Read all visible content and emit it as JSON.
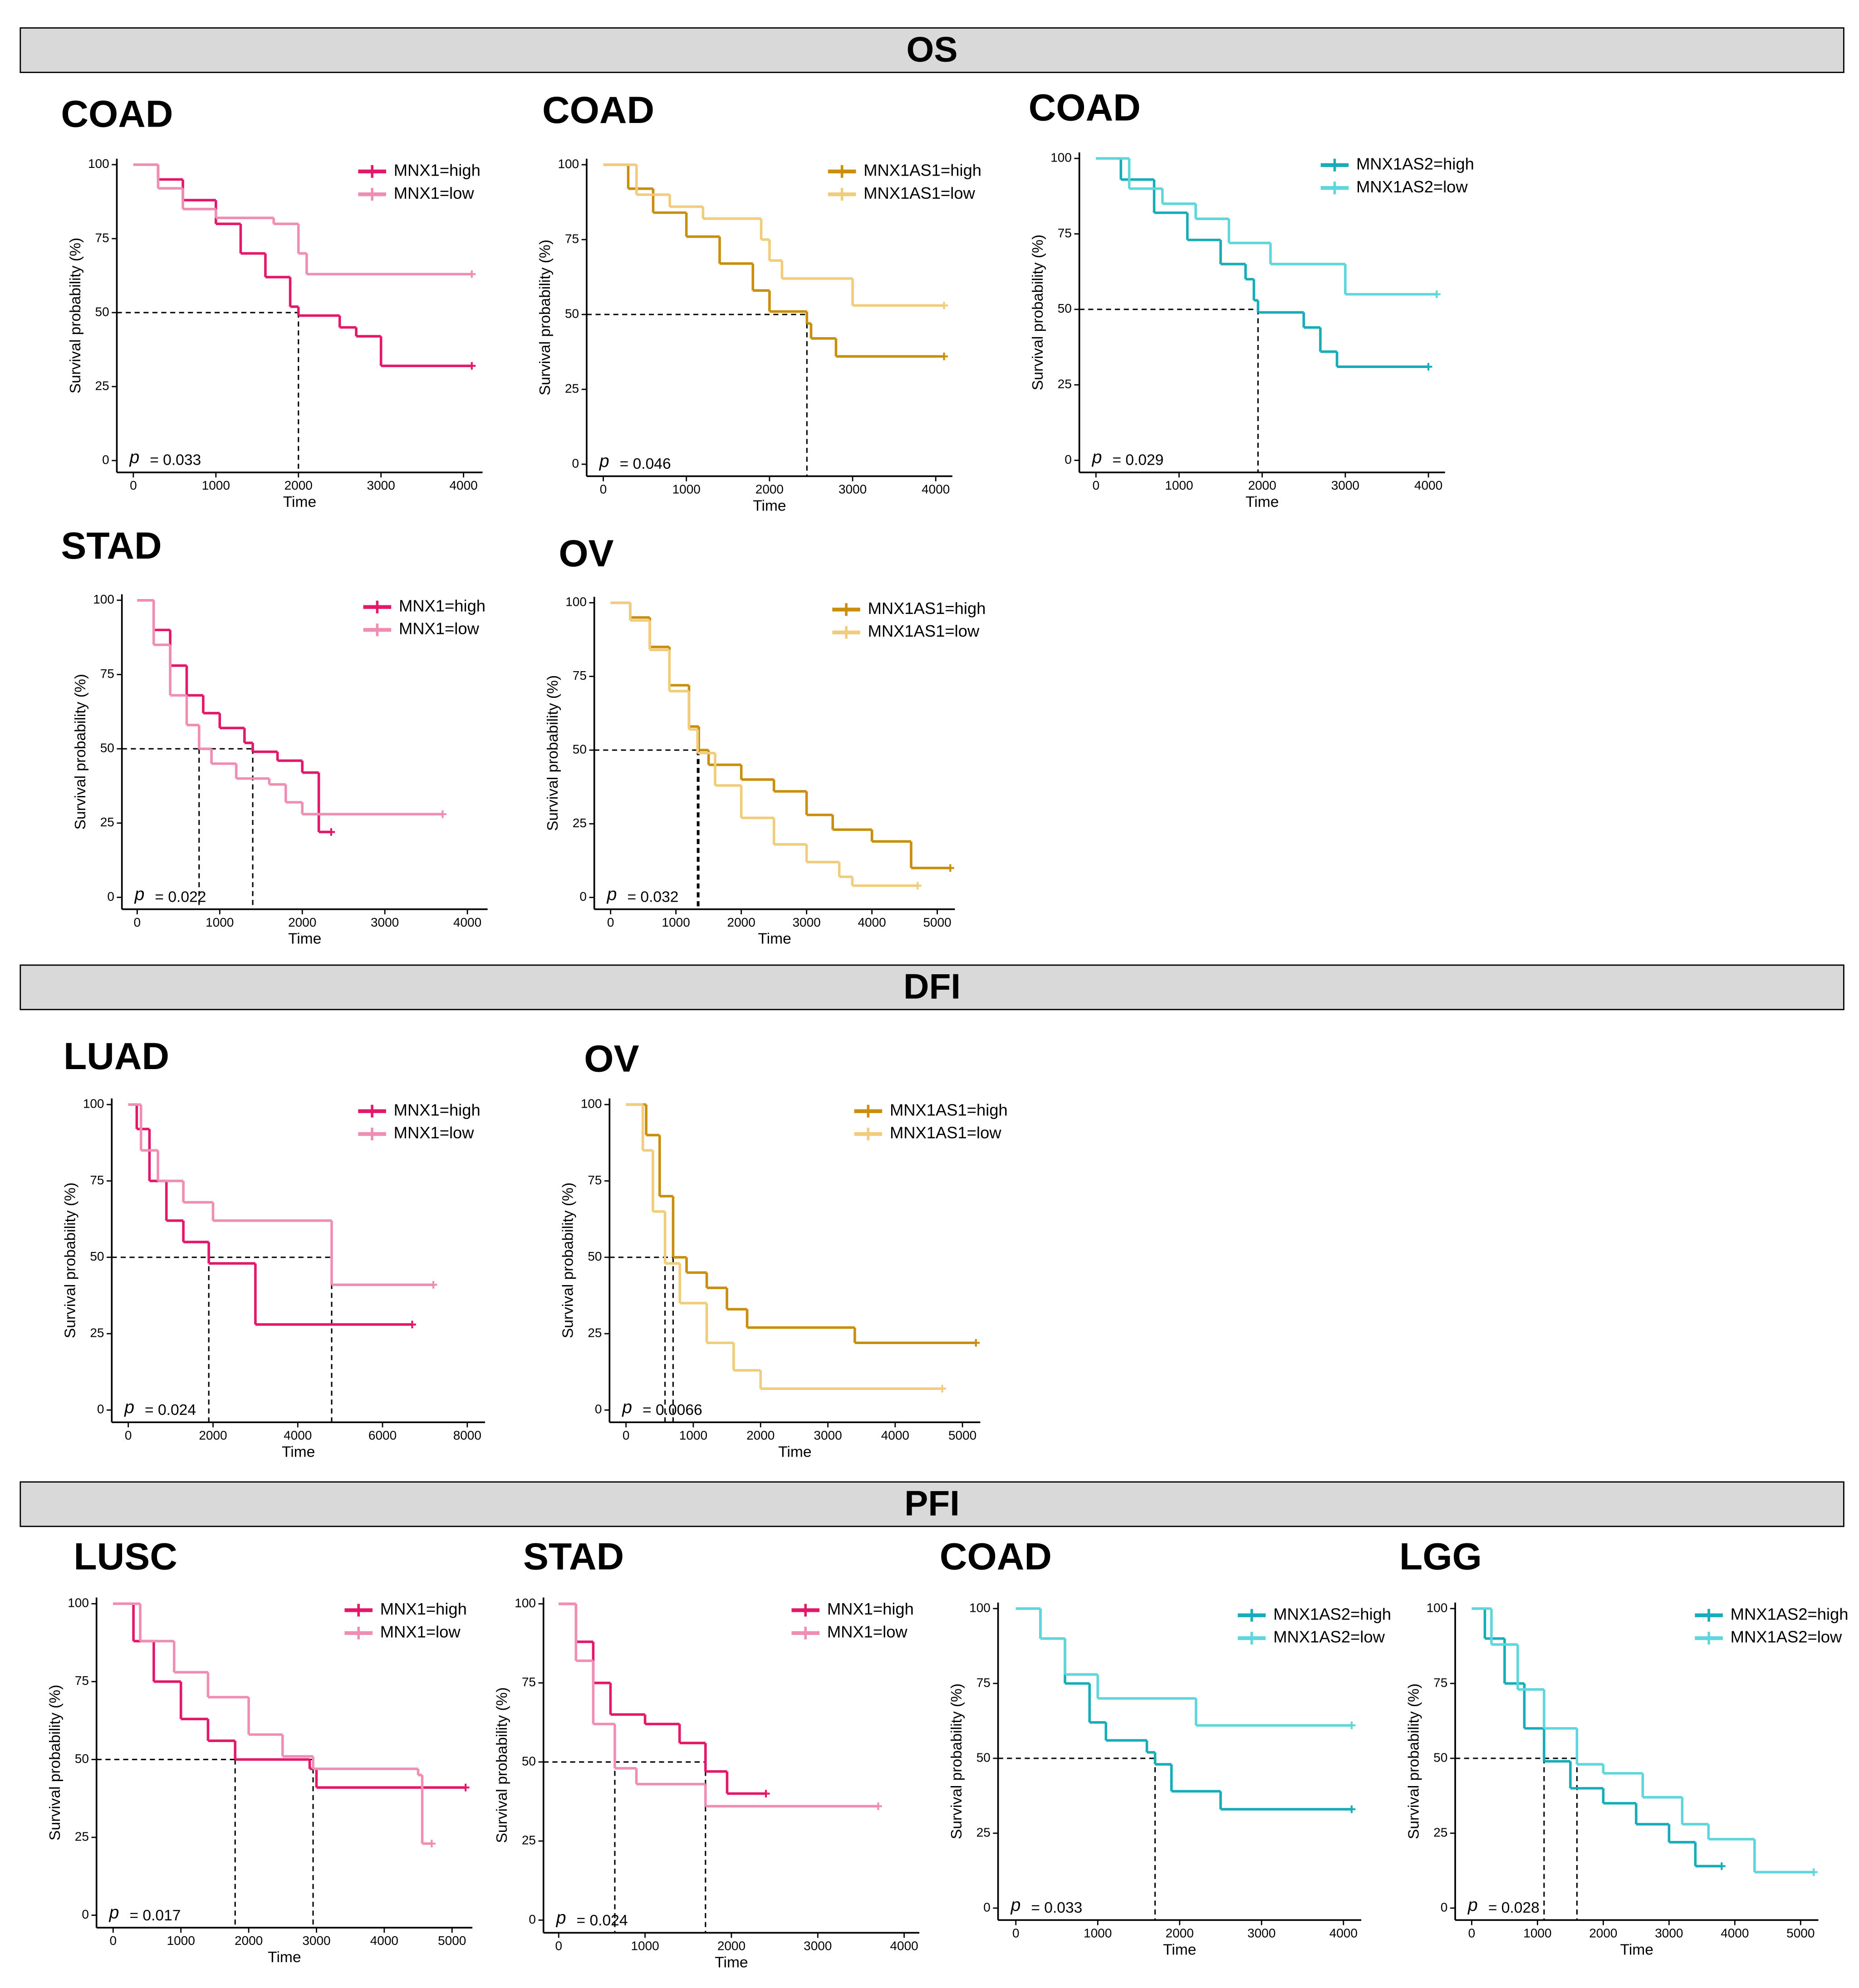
{
  "sections": [
    "OS",
    "DFI",
    "PFI"
  ],
  "chart_data": [
    {
      "type": "step",
      "title": "COAD",
      "x_label": "Time",
      "y_label": "Survival probability (%)",
      "p_symbol": "p",
      "p_text": "= 0.033",
      "xlim": [
        -200,
        4230
      ],
      "xticks": [
        0,
        1000,
        2000,
        3000,
        4000
      ],
      "ylim": [
        -4,
        102
      ],
      "yticks": [
        0,
        25,
        50,
        75,
        100
      ],
      "series": [
        {
          "name": "MNX1=high",
          "color": "#e3186a",
          "x": [
            0,
            300,
            600,
            1000,
            1300,
            1600,
            1900,
            2000,
            2500,
            2700,
            3000,
            4100
          ],
          "values": [
            100,
            95,
            88,
            80,
            70,
            62,
            52,
            49,
            45,
            42,
            32,
            32
          ]
        },
        {
          "name": "MNX1=low",
          "color": "#f08db2",
          "x": [
            0,
            300,
            600,
            1000,
            1700,
            2000,
            2100,
            4100
          ],
          "values": [
            100,
            92,
            85,
            82,
            80,
            70,
            63,
            63
          ]
        }
      ]
    },
    {
      "type": "step",
      "title": "COAD",
      "x_label": "Time",
      "y_label": "Survival probability (%)",
      "p_symbol": "p",
      "p_text": "= 0.046",
      "xlim": [
        -200,
        4200
      ],
      "xticks": [
        0,
        1000,
        2000,
        3000,
        4000
      ],
      "ylim": [
        -4,
        102
      ],
      "yticks": [
        0,
        25,
        50,
        75,
        100
      ],
      "series": [
        {
          "name": "MNX1AS1=high",
          "color": "#c98f0c",
          "x": [
            0,
            300,
            600,
            1000,
            1400,
            1800,
            2000,
            2450,
            2500,
            2800,
            4100
          ],
          "values": [
            100,
            92,
            84,
            76,
            67,
            58,
            51,
            47,
            42,
            36,
            36
          ]
        },
        {
          "name": "MNX1AS1=low",
          "color": "#f0cc7b",
          "x": [
            0,
            400,
            800,
            1200,
            1900,
            2000,
            2150,
            3000,
            4100
          ],
          "values": [
            100,
            90,
            86,
            82,
            75,
            68,
            62,
            53,
            53
          ]
        }
      ]
    },
    {
      "type": "step",
      "title": "COAD",
      "x_label": "Time",
      "y_label": "Survival probability (%)",
      "p_symbol": "p",
      "p_text": "= 0.029",
      "xlim": [
        -200,
        4200
      ],
      "xticks": [
        0,
        1000,
        2000,
        3000,
        4000
      ],
      "ylim": [
        -4,
        102
      ],
      "yticks": [
        0,
        25,
        50,
        75,
        100
      ],
      "series": [
        {
          "name": "MNX1AS2=high",
          "color": "#17adb8",
          "x": [
            0,
            300,
            700,
            1100,
            1500,
            1800,
            1900,
            1950,
            2500,
            2700,
            2900,
            4000
          ],
          "values": [
            100,
            93,
            82,
            73,
            65,
            60,
            53,
            49,
            44,
            36,
            31,
            31
          ]
        },
        {
          "name": "MNX1AS2=low",
          "color": "#5dd6dc",
          "x": [
            0,
            400,
            800,
            1200,
            1600,
            2100,
            3000,
            4100
          ],
          "values": [
            100,
            90,
            85,
            80,
            72,
            65,
            55,
            55
          ]
        }
      ]
    },
    {
      "type": "step",
      "title": "STAD",
      "x_label": "Time",
      "y_label": "Survival probability (%)",
      "p_symbol": "p",
      "p_text": "= 0.022",
      "xlim": [
        -185,
        4245
      ],
      "xticks": [
        0,
        1000,
        2000,
        3000,
        4000
      ],
      "ylim": [
        -4,
        102
      ],
      "yticks": [
        0,
        25,
        50,
        75,
        100
      ],
      "series": [
        {
          "name": "MNX1=high",
          "color": "#e3186a",
          "x": [
            0,
            200,
            400,
            600,
            800,
            1000,
            1300,
            1400,
            1700,
            2000,
            2200,
            2350
          ],
          "values": [
            100,
            90,
            78,
            68,
            62,
            57,
            52,
            49,
            46,
            42,
            22,
            22
          ]
        },
        {
          "name": "MNX1=low",
          "color": "#f08db2",
          "x": [
            0,
            200,
            400,
            600,
            750,
            900,
            1200,
            1600,
            1800,
            2000,
            3700
          ],
          "values": [
            100,
            85,
            68,
            58,
            50,
            45,
            40,
            38,
            32,
            28,
            28
          ]
        }
      ]
    },
    {
      "type": "step",
      "title": "OV",
      "x_label": "Time",
      "y_label": "Survival probability (%)",
      "p_symbol": "p",
      "p_text": "= 0.032",
      "xlim": [
        -250,
        5270
      ],
      "xticks": [
        0,
        1000,
        2000,
        3000,
        4000,
        5000
      ],
      "ylim": [
        -4,
        102
      ],
      "yticks": [
        0,
        25,
        50,
        75,
        100
      ],
      "series": [
        {
          "name": "MNX1AS1=high",
          "color": "#c98f0c",
          "x": [
            0,
            300,
            600,
            900,
            1200,
            1350,
            1500,
            2000,
            2500,
            3000,
            3400,
            4000,
            4600,
            5200
          ],
          "values": [
            100,
            95,
            85,
            72,
            58,
            50,
            45,
            40,
            36,
            28,
            23,
            19,
            10,
            10
          ]
        },
        {
          "name": "MNX1AS1=low",
          "color": "#f0cc7b",
          "x": [
            0,
            300,
            600,
            900,
            1200,
            1330,
            1600,
            2000,
            2500,
            3000,
            3500,
            3700,
            4700
          ],
          "values": [
            100,
            94,
            84,
            70,
            57,
            49,
            38,
            27,
            18,
            12,
            7,
            4,
            4
          ]
        }
      ]
    },
    {
      "type": "step",
      "title": "LUAD",
      "x_label": "Time",
      "y_label": "Survival probability (%)",
      "p_symbol": "p",
      "p_text": "= 0.024",
      "xlim": [
        -390,
        8420
      ],
      "xticks": [
        0,
        2000,
        4000,
        6000,
        8000
      ],
      "ylim": [
        -4,
        102
      ],
      "yticks": [
        0,
        25,
        50,
        75,
        100
      ],
      "series": [
        {
          "name": "MNX1=high",
          "color": "#e3186a",
          "x": [
            0,
            200,
            500,
            900,
            1300,
            1900,
            3000,
            6700
          ],
          "values": [
            100,
            92,
            75,
            62,
            55,
            48,
            28,
            28
          ]
        },
        {
          "name": "MNX1=low",
          "color": "#f08db2",
          "x": [
            0,
            300,
            700,
            1300,
            2000,
            4800,
            7200
          ],
          "values": [
            100,
            85,
            75,
            68,
            62,
            41,
            41
          ]
        }
      ]
    },
    {
      "type": "step",
      "title": "OV",
      "x_label": "Time",
      "y_label": "Survival probability (%)",
      "p_symbol": "p",
      "p_text": "= 0.0066",
      "xlim": [
        -245,
        5265
      ],
      "xticks": [
        0,
        1000,
        2000,
        3000,
        4000,
        5000
      ],
      "ylim": [
        -4,
        102
      ],
      "yticks": [
        0,
        25,
        50,
        75,
        100
      ],
      "series": [
        {
          "name": "MNX1AS1=high",
          "color": "#c98f0c",
          "x": [
            0,
            300,
            500,
            700,
            900,
            1200,
            1500,
            1800,
            3400,
            5200
          ],
          "values": [
            100,
            90,
            70,
            50,
            45,
            40,
            33,
            27,
            22,
            22
          ]
        },
        {
          "name": "MNX1AS1=low",
          "color": "#f0cc7b",
          "x": [
            0,
            250,
            400,
            580,
            800,
            1200,
            1600,
            2000,
            4700
          ],
          "values": [
            100,
            85,
            65,
            48,
            35,
            22,
            13,
            7,
            7
          ]
        }
      ]
    },
    {
      "type": "step",
      "title": "LUSC",
      "x_label": "Time",
      "y_label": "Survival probability (%)",
      "p_symbol": "p",
      "p_text": "= 0.017",
      "xlim": [
        -245,
        5300
      ],
      "xticks": [
        0,
        1000,
        2000,
        3000,
        4000,
        5000
      ],
      "ylim": [
        -4,
        102
      ],
      "yticks": [
        0,
        25,
        50,
        75,
        100
      ],
      "series": [
        {
          "name": "MNX1=high",
          "color": "#e3186a",
          "x": [
            0,
            300,
            600,
            1000,
            1400,
            1800,
            2900,
            3000,
            5200
          ],
          "values": [
            100,
            88,
            75,
            63,
            56,
            50,
            47,
            41,
            41
          ]
        },
        {
          "name": "MNX1=low",
          "color": "#f08db2",
          "x": [
            0,
            400,
            900,
            1400,
            2000,
            2500,
            2950,
            4500,
            4560,
            4700
          ],
          "values": [
            100,
            88,
            78,
            70,
            58,
            51,
            47,
            45,
            23,
            23
          ]
        }
      ]
    },
    {
      "type": "step",
      "title": "STAD",
      "x_label": "Time",
      "y_label": "Survival probability (%)",
      "p_symbol": "p",
      "p_text": "= 0.024",
      "xlim": [
        -176,
        4176
      ],
      "xticks": [
        0,
        1000,
        2000,
        3000,
        4000
      ],
      "ylim": [
        -4,
        102
      ],
      "yticks": [
        0,
        25,
        50,
        75,
        100
      ],
      "series": [
        {
          "name": "MNX1=high",
          "color": "#e3186a",
          "x": [
            0,
            200,
            400,
            600,
            1000,
            1400,
            1700,
            1950,
            2400
          ],
          "values": [
            100,
            88,
            75,
            65,
            62,
            56,
            47,
            40,
            40
          ]
        },
        {
          "name": "MNX1=low",
          "color": "#f08db2",
          "x": [
            0,
            200,
            400,
            650,
            900,
            1700,
            3700
          ],
          "values": [
            100,
            82,
            62,
            48,
            43,
            36,
            36
          ]
        }
      ]
    },
    {
      "type": "step",
      "title": "COAD",
      "x_label": "Time",
      "y_label": "Survival probability (%)",
      "p_symbol": "p",
      "p_text": "= 0.033",
      "xlim": [
        -217,
        4217
      ],
      "xticks": [
        0,
        1000,
        2000,
        3000,
        4000
      ],
      "ylim": [
        -4,
        102
      ],
      "yticks": [
        0,
        25,
        50,
        75,
        100
      ],
      "series": [
        {
          "name": "MNX1AS2=high",
          "color": "#17adb8",
          "x": [
            0,
            300,
            600,
            900,
            1100,
            1600,
            1700,
            1900,
            2500,
            4100
          ],
          "values": [
            100,
            90,
            75,
            62,
            56,
            52,
            48,
            39,
            33,
            33
          ]
        },
        {
          "name": "MNX1AS2=low",
          "color": "#5dd6dc",
          "x": [
            0,
            300,
            600,
            1000,
            2200,
            4100
          ],
          "values": [
            100,
            90,
            78,
            70,
            61,
            61
          ]
        }
      ]
    },
    {
      "type": "step",
      "title": "LGG",
      "x_label": "Time",
      "y_label": "Survival probability (%)",
      "p_symbol": "p",
      "p_text": "= 0.028",
      "xlim": [
        -251,
        5270
      ],
      "xticks": [
        0,
        1000,
        2000,
        3000,
        4000,
        5000
      ],
      "ylim": [
        -4,
        102
      ],
      "yticks": [
        0,
        25,
        50,
        75,
        100
      ],
      "series": [
        {
          "name": "MNX1AS2=high",
          "color": "#17adb8",
          "x": [
            0,
            200,
            500,
            800,
            1100,
            1500,
            2000,
            2500,
            3000,
            3400,
            3800
          ],
          "values": [
            100,
            90,
            75,
            60,
            49,
            40,
            35,
            28,
            22,
            14,
            14
          ]
        },
        {
          "name": "MNX1AS2=low",
          "color": "#5dd6dc",
          "x": [
            0,
            300,
            700,
            1100,
            1600,
            2000,
            2600,
            3200,
            3600,
            4300,
            5200
          ],
          "values": [
            100,
            88,
            73,
            60,
            48,
            45,
            37,
            28,
            23,
            12,
            12
          ]
        }
      ]
    }
  ]
}
